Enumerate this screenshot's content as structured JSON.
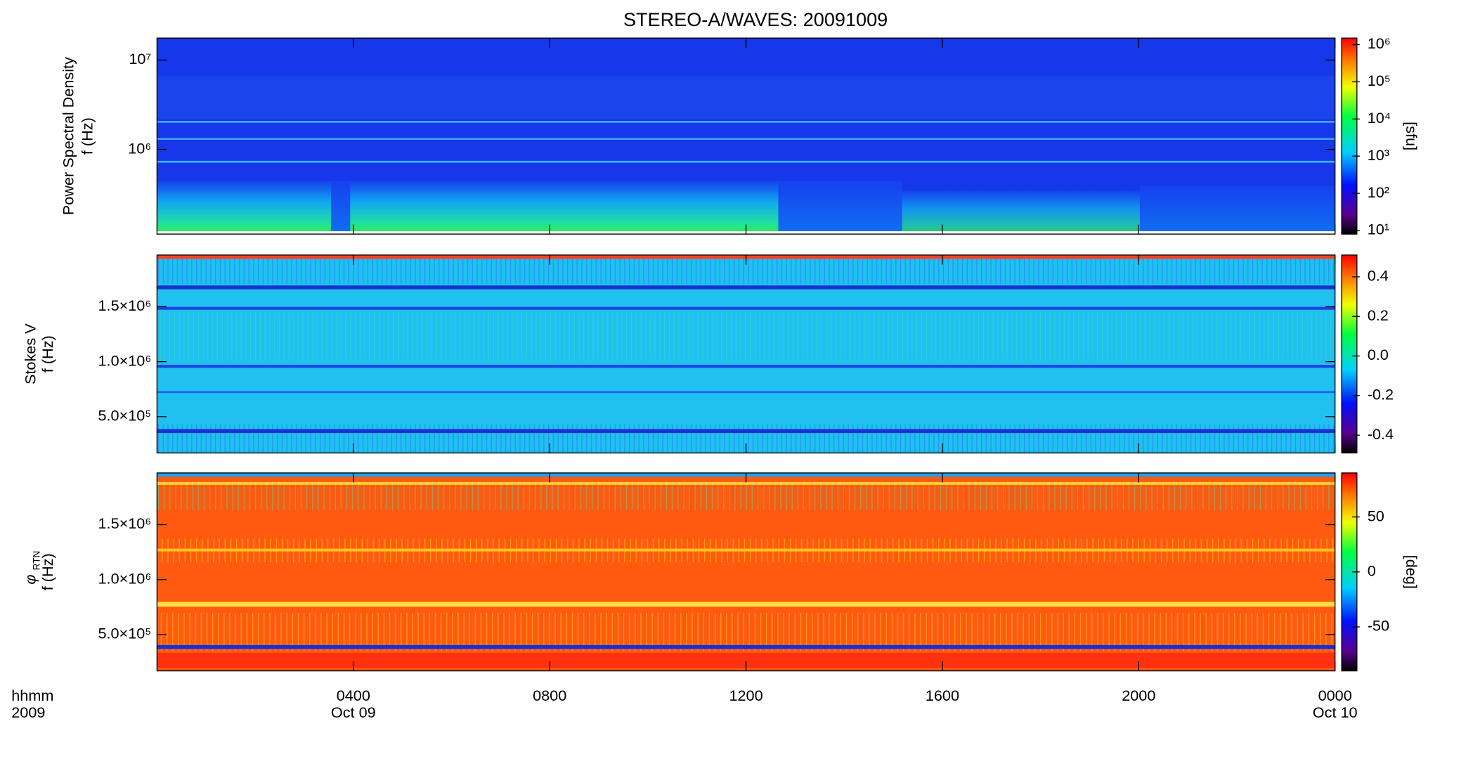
{
  "chart_data": [
    {
      "type": "spectrogram",
      "title": "STEREO-A/WAVES: 20091009",
      "ylabel": "Power Spectral Density",
      "ylabel2": "f (Hz)",
      "ylog": true,
      "ylim": [
        113000,
        17600000
      ],
      "yticks": [
        {
          "value": 1000000,
          "label": "10⁶"
        },
        {
          "value": 10000000,
          "label": "10⁷"
        }
      ],
      "xlim": [
        0,
        24
      ],
      "colorbar": {
        "log": true,
        "clim": [
          8,
          1500000
        ],
        "label": "[sfu]",
        "ticks": [
          {
            "value": 10,
            "label": "10¹"
          },
          {
            "value": 100,
            "label": "10²"
          },
          {
            "value": 1000,
            "label": "10³"
          },
          {
            "value": 10000,
            "label": "10⁴"
          },
          {
            "value": 100000,
            "label": "10⁵"
          },
          {
            "value": 1000000,
            "label": "10⁶"
          }
        ]
      }
    },
    {
      "type": "spectrogram",
      "ylabel": "Stokes V",
      "ylabel2": "f (Hz)",
      "ylog": false,
      "ylim": [
        170000,
        1970000
      ],
      "yticks": [
        {
          "value": 500000,
          "label": "5.0×10⁵"
        },
        {
          "value": 1000000,
          "label": "1.0×10⁶"
        },
        {
          "value": 1500000,
          "label": "1.5×10⁶"
        }
      ],
      "xlim": [
        0,
        24
      ],
      "colorbar": {
        "log": false,
        "clim": [
          -0.49,
          0.51
        ],
        "ticks": [
          -0.4,
          -0.2,
          {
            "value": 0,
            "label": "0.0"
          },
          0.2,
          0.4
        ]
      }
    },
    {
      "type": "spectrogram",
      "ylabel": "φ",
      "ylabel_sub": "RTN",
      "ylabel2": "f (Hz)",
      "ylog": false,
      "ylim": [
        170000,
        1970000
      ],
      "yticks": [
        {
          "value": 500000,
          "label": "5.0×10⁵"
        },
        {
          "value": 1000000,
          "label": "1.0×10⁶"
        },
        {
          "value": 1500000,
          "label": "1.5×10⁶"
        }
      ],
      "xlim": [
        0,
        24
      ],
      "xlabel": "hhmm",
      "xlabel2": "2009",
      "xticks": [
        {
          "value": 4,
          "label": "0400"
        },
        {
          "value": 8,
          "label": "0800"
        },
        {
          "value": 12,
          "label": "1200"
        },
        {
          "value": 16,
          "label": "1600"
        },
        {
          "value": 20,
          "label": "2000"
        },
        {
          "value": 24,
          "label": "0000"
        }
      ],
      "xtick_dates": [
        "Oct 09",
        null,
        null,
        null,
        null,
        "Oct 10"
      ],
      "colorbar": {
        "log": false,
        "clim": [
          -90,
          90
        ],
        "label": "[deg]",
        "ticks": [
          -50,
          0,
          50
        ]
      }
    }
  ]
}
